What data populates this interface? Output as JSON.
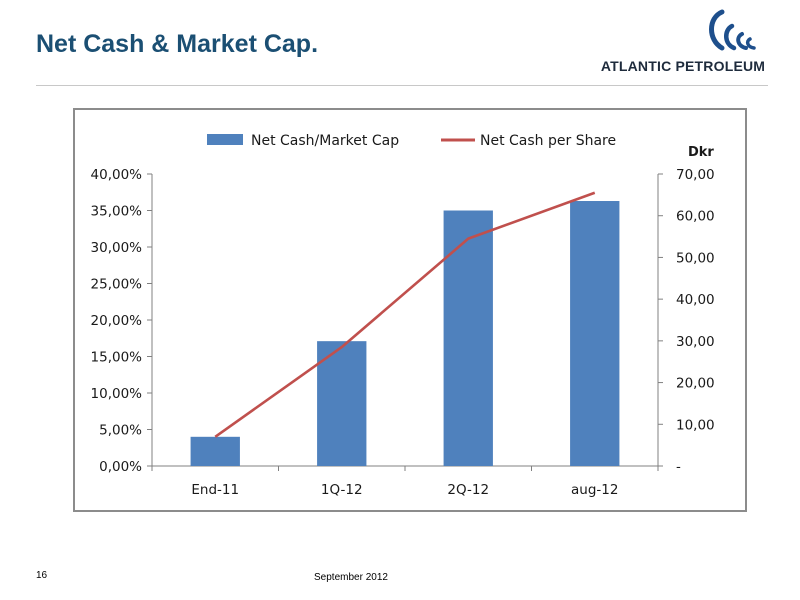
{
  "slide": {
    "title": "Net Cash & Market Cap.",
    "page_number": "16",
    "date": "September 2012"
  },
  "logo": {
    "name": "ATLANTIC PETROLEUM",
    "icon": "wave-swirl-icon",
    "color": "#1e4f8c"
  },
  "colors": {
    "title": "#1b4f73",
    "bar": "#4f81bd",
    "line": "#c0504d"
  },
  "chart_data": {
    "type": "bar",
    "categories": [
      "End-11",
      "1Q-12",
      "2Q-12",
      "aug-12"
    ],
    "series": [
      {
        "name": "Net Cash/Market Cap",
        "type": "bar",
        "axis": "left",
        "values": [
          4.0,
          17.1,
          35.0,
          36.3
        ]
      },
      {
        "name": "Net Cash per Share",
        "type": "line",
        "axis": "right",
        "values": [
          7.0,
          28.5,
          54.5,
          65.5
        ]
      }
    ],
    "y_left": {
      "min": 0,
      "max": 40,
      "step": 5,
      "tick_labels": [
        "0,00%",
        "5,00%",
        "10,00%",
        "15,00%",
        "20,00%",
        "25,00%",
        "30,00%",
        "35,00%",
        "40,00%"
      ]
    },
    "y_right": {
      "label": "Dkr",
      "min": 0,
      "max": 70,
      "step": 10,
      "tick_labels": [
        "-",
        "10,00",
        "20,00",
        "30,00",
        "40,00",
        "50,00",
        "60,00",
        "70,00"
      ]
    },
    "legend": "top",
    "grid": false
  }
}
